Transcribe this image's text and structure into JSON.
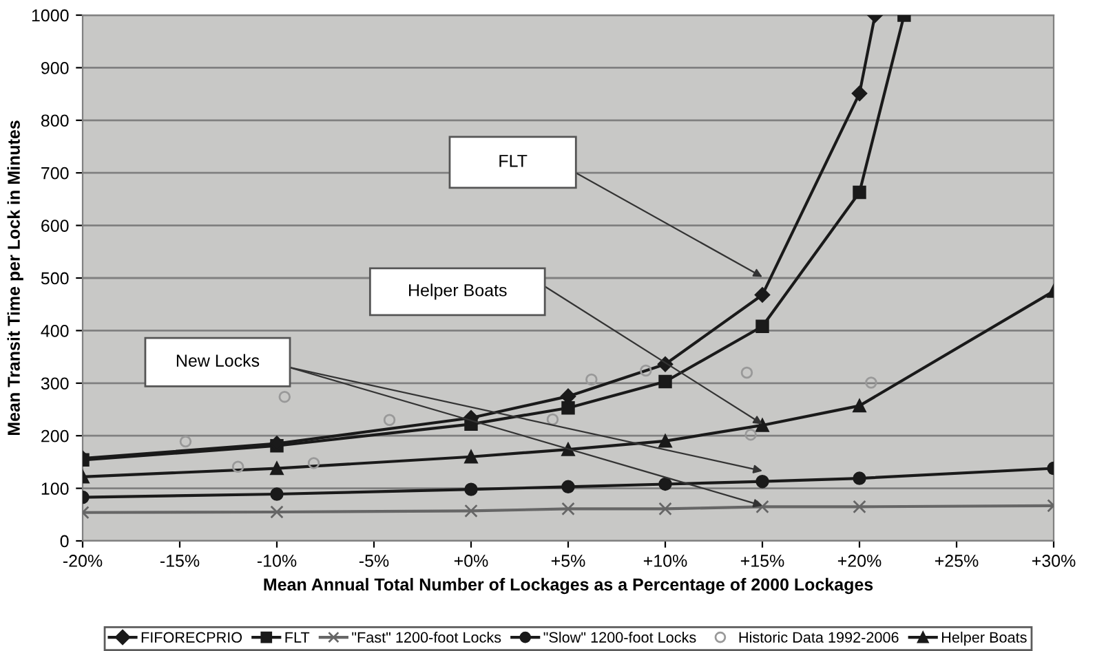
{
  "chart_data": {
    "type": "line",
    "xlabel": "Mean Annual Total Number of Lockages as a Percentage of 2000 Lockages",
    "ylabel": "Mean Transit Time per Lock in Minutes",
    "xlim": [
      -20,
      30
    ],
    "xticks": [
      {
        "value": -20,
        "label": "-20%"
      },
      {
        "value": -15,
        "label": "-15%"
      },
      {
        "value": -10,
        "label": "-10%"
      },
      {
        "value": -5,
        "label": "-5%"
      },
      {
        "value": 0,
        "label": "+0%"
      },
      {
        "value": 5,
        "label": "+5%"
      },
      {
        "value": 10,
        "label": "+10%"
      },
      {
        "value": 15,
        "label": "+15%"
      },
      {
        "value": 20,
        "label": "+20%"
      },
      {
        "value": 25,
        "label": "+25%"
      },
      {
        "value": 30,
        "label": "+30%"
      }
    ],
    "ylim": [
      0,
      1000
    ],
    "yticks": [
      0,
      100,
      200,
      300,
      400,
      500,
      600,
      700,
      800,
      900,
      1000
    ],
    "grid": "y",
    "legend": "bottom",
    "series": [
      {
        "name": "FIFORECPRIO",
        "color": "#1a1a1a",
        "marker": "diamond",
        "x": [
          -20,
          -10,
          0,
          5,
          10,
          15,
          20,
          20.8
        ],
        "values": [
          157,
          185,
          234,
          275,
          336,
          468,
          851,
          1000
        ]
      },
      {
        "name": "FLT",
        "color": "#1a1a1a",
        "marker": "square",
        "x": [
          -20,
          -10,
          0,
          5,
          10,
          15,
          20,
          22.3
        ],
        "values": [
          154,
          181,
          222,
          253,
          303,
          408,
          663,
          1000
        ]
      },
      {
        "name": "\"Fast\" 1200-foot Locks",
        "color": "#666666",
        "marker": "cross",
        "x": [
          -20,
          -10,
          0,
          5,
          10,
          15,
          20,
          30
        ],
        "values": [
          54,
          55,
          57,
          61,
          61,
          65,
          65,
          67
        ]
      },
      {
        "name": "\"Slow\" 1200-foot Locks",
        "color": "#1a1a1a",
        "marker": "circle",
        "x": [
          -20,
          -10,
          0,
          5,
          10,
          15,
          20,
          30
        ],
        "values": [
          83,
          89,
          98,
          103,
          108,
          113,
          119,
          138
        ]
      },
      {
        "name": "Historic Data 1992-2006",
        "type": "scatter",
        "color": "#999999",
        "marker": "circle",
        "x": [
          -14.7,
          -12.0,
          -9.6,
          -8.1,
          -4.2,
          4.2,
          6.2,
          9.0,
          14.2,
          14.4,
          20.6
        ],
        "values": [
          189,
          141,
          274,
          148,
          230,
          231,
          307,
          324,
          320,
          202,
          301
        ]
      },
      {
        "name": "Helper Boats",
        "color": "#1a1a1a",
        "marker": "triangle",
        "x": [
          -20,
          -10,
          0,
          5,
          10,
          15,
          20,
          30
        ],
        "values": [
          122,
          138,
          160,
          174,
          190,
          220,
          257,
          475
        ]
      }
    ],
    "annotations": [
      "FLT",
      "Helper Boats",
      "New Locks"
    ]
  }
}
